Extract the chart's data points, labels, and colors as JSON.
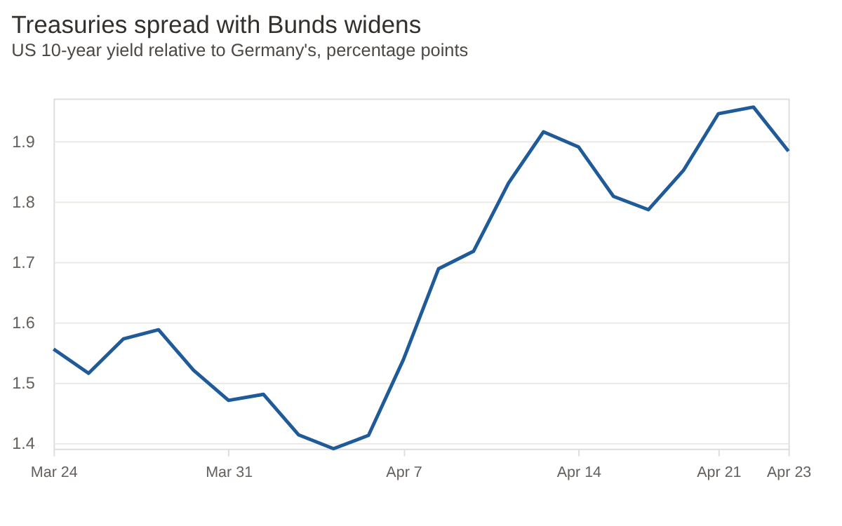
{
  "chart_data": {
    "type": "line",
    "title": "Treasuries spread with Bunds widens",
    "subtitle": "US 10-year yield relative to Germany's, percentage points",
    "categories": [
      "Mar 24",
      null,
      null,
      null,
      null,
      "Mar 31",
      null,
      null,
      null,
      null,
      "Apr 7",
      null,
      null,
      null,
      null,
      "Apr 14",
      null,
      null,
      null,
      "Apr 21",
      null,
      "Apr 23"
    ],
    "series": [
      {
        "color": "#1f5a99",
        "values": [
          1.555,
          1.515,
          1.572,
          1.587,
          1.52,
          1.47,
          1.48,
          1.413,
          1.39,
          1.412,
          1.538,
          1.688,
          1.717,
          1.83,
          1.915,
          1.89,
          1.808,
          1.786,
          1.851,
          1.945,
          1.956,
          1.883
        ]
      }
    ],
    "ylim": [
      1.39,
      1.97
    ],
    "yticks": [
      1.4,
      1.5,
      1.6,
      1.7,
      1.8,
      1.9
    ],
    "grid": "y",
    "legend": false,
    "marker": "none",
    "line_style": "solid"
  }
}
